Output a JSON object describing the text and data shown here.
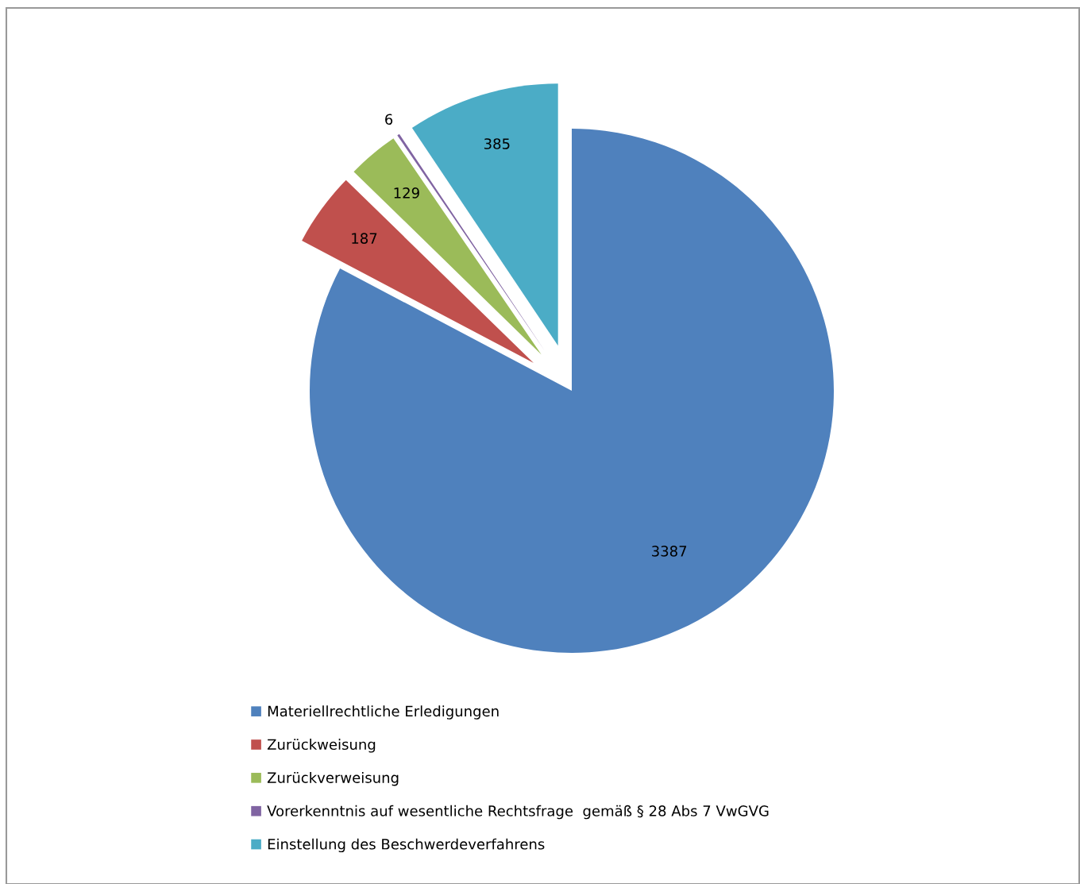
{
  "chart_data": {
    "type": "pie",
    "categories": [
      "Materiellrechtliche Erledigungen",
      "Zurückweisung",
      "Zurückverweisung",
      "Vorerkenntnis auf wesentliche Rechtsfrage  gemäß § 28 Abs 7 VwGVG",
      "Einstellung des Beschwerdeverfahrens"
    ],
    "values": [
      3387,
      187,
      129,
      6,
      385
    ],
    "colors": [
      "#4f81bd",
      "#c0504d",
      "#9bbb59",
      "#8064a2",
      "#4bacc6"
    ],
    "data_labels": true,
    "legend": "bottom"
  }
}
